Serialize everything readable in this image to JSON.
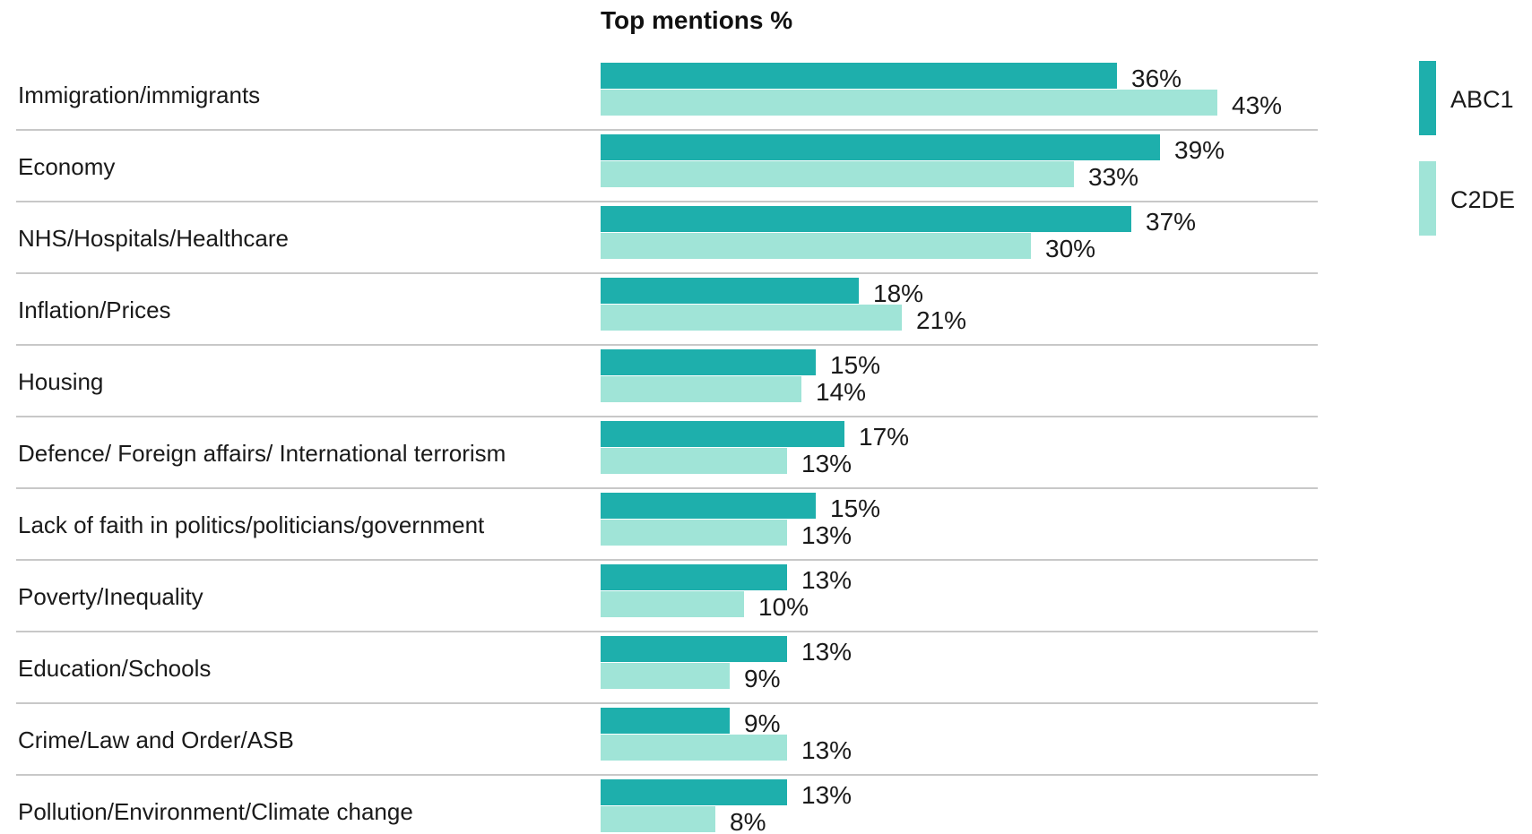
{
  "chart_data": {
    "type": "bar",
    "orientation": "horizontal",
    "title": "Top mentions %",
    "categories": [
      "Immigration/immigrants",
      "Economy",
      "NHS/Hospitals/Healthcare",
      "Inflation/Prices",
      "Housing",
      "Defence/ Foreign affairs/ International terrorism",
      "Lack of faith in politics/politicians/government",
      "Poverty/Inequality",
      "Education/Schools",
      "Crime/Law and Order/ASB",
      "Pollution/Environment/Climate change"
    ],
    "series": [
      {
        "name": "ABC1",
        "color": "#1eafac",
        "values": [
          36,
          39,
          37,
          18,
          15,
          17,
          15,
          13,
          13,
          9,
          13
        ]
      },
      {
        "name": "C2DE",
        "color": "#a0e4d7",
        "values": [
          43,
          33,
          30,
          21,
          14,
          13,
          13,
          10,
          9,
          13,
          8
        ]
      }
    ],
    "value_suffix": "%",
    "xlim": [
      0,
      50
    ],
    "legend_position": "right",
    "grid": false
  }
}
